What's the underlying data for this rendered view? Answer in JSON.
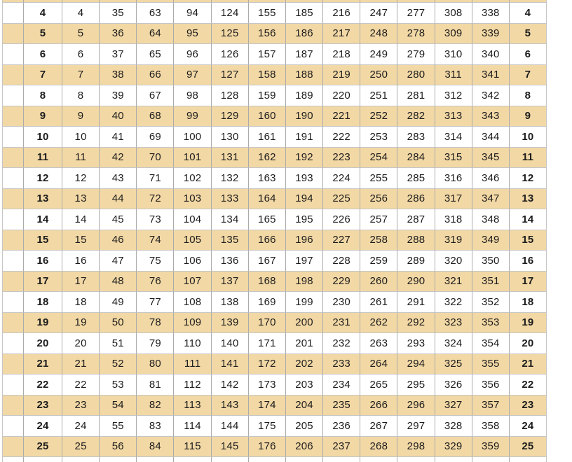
{
  "style": {
    "stripe_color": "#f2d8a5",
    "row_alt_color": "#ffffff",
    "vertical_line_color": "#ababab",
    "horizontal_line_color": "#c6c6c6",
    "text_color": "#1c1c1c",
    "page_background": "#ffffff"
  },
  "chart_data": {
    "type": "table",
    "description": "Cropped day-of-year lookup table (non-leap year). Each row: day of month (bold, left and right edges) and the corresponding day-of-year number for each of the 12 month columns. Rows for days 4 through 25 are fully visible; a textless sliver row is cropped at the top (striped) and bottom (white).",
    "rows": [
      {
        "day": "",
        "months": [
          "",
          "",
          "",
          "",
          "",
          "",
          "",
          "",
          "",
          "",
          "",
          ""
        ]
      },
      {
        "day": "4",
        "months": [
          4,
          35,
          63,
          94,
          124,
          155,
          185,
          216,
          247,
          277,
          308,
          338
        ]
      },
      {
        "day": "5",
        "months": [
          5,
          36,
          64,
          95,
          125,
          156,
          186,
          217,
          248,
          278,
          309,
          339
        ]
      },
      {
        "day": "6",
        "months": [
          6,
          37,
          65,
          96,
          126,
          157,
          187,
          218,
          249,
          279,
          310,
          340
        ]
      },
      {
        "day": "7",
        "months": [
          7,
          38,
          66,
          97,
          127,
          158,
          188,
          219,
          250,
          280,
          311,
          341
        ]
      },
      {
        "day": "8",
        "months": [
          8,
          39,
          67,
          98,
          128,
          159,
          189,
          220,
          251,
          281,
          312,
          342
        ]
      },
      {
        "day": "9",
        "months": [
          9,
          40,
          68,
          99,
          129,
          160,
          190,
          221,
          252,
          282,
          313,
          343
        ]
      },
      {
        "day": "10",
        "months": [
          10,
          41,
          69,
          100,
          130,
          161,
          191,
          222,
          253,
          283,
          314,
          344
        ]
      },
      {
        "day": "11",
        "months": [
          11,
          42,
          70,
          101,
          131,
          162,
          192,
          223,
          254,
          284,
          315,
          345
        ]
      },
      {
        "day": "12",
        "months": [
          12,
          43,
          71,
          102,
          132,
          163,
          193,
          224,
          255,
          285,
          316,
          346
        ]
      },
      {
        "day": "13",
        "months": [
          13,
          44,
          72,
          103,
          133,
          164,
          194,
          225,
          256,
          286,
          317,
          347
        ]
      },
      {
        "day": "14",
        "months": [
          14,
          45,
          73,
          104,
          134,
          165,
          195,
          226,
          257,
          287,
          318,
          348
        ]
      },
      {
        "day": "15",
        "months": [
          15,
          46,
          74,
          105,
          135,
          166,
          196,
          227,
          258,
          288,
          319,
          349
        ]
      },
      {
        "day": "16",
        "months": [
          16,
          47,
          75,
          106,
          136,
          167,
          197,
          228,
          259,
          289,
          320,
          350
        ]
      },
      {
        "day": "17",
        "months": [
          17,
          48,
          76,
          107,
          137,
          168,
          198,
          229,
          260,
          290,
          321,
          351
        ]
      },
      {
        "day": "18",
        "months": [
          18,
          49,
          77,
          108,
          138,
          169,
          199,
          230,
          261,
          291,
          322,
          352
        ]
      },
      {
        "day": "19",
        "months": [
          19,
          50,
          78,
          109,
          139,
          170,
          200,
          231,
          262,
          292,
          323,
          353
        ]
      },
      {
        "day": "20",
        "months": [
          20,
          51,
          79,
          110,
          140,
          171,
          201,
          232,
          263,
          293,
          324,
          354
        ]
      },
      {
        "day": "21",
        "months": [
          21,
          52,
          80,
          111,
          141,
          172,
          202,
          233,
          264,
          294,
          325,
          355
        ]
      },
      {
        "day": "22",
        "months": [
          22,
          53,
          81,
          112,
          142,
          173,
          203,
          234,
          265,
          295,
          326,
          356
        ]
      },
      {
        "day": "23",
        "months": [
          23,
          54,
          82,
          113,
          143,
          174,
          204,
          235,
          266,
          296,
          327,
          357
        ]
      },
      {
        "day": "24",
        "months": [
          24,
          55,
          83,
          114,
          144,
          175,
          205,
          236,
          267,
          297,
          328,
          358
        ]
      },
      {
        "day": "25",
        "months": [
          25,
          56,
          84,
          115,
          145,
          176,
          206,
          237,
          268,
          298,
          329,
          359
        ]
      },
      {
        "day": "",
        "months": [
          "",
          "",
          "",
          "",
          "",
          "",
          "",
          "",
          "",
          "",
          "",
          ""
        ]
      }
    ]
  }
}
